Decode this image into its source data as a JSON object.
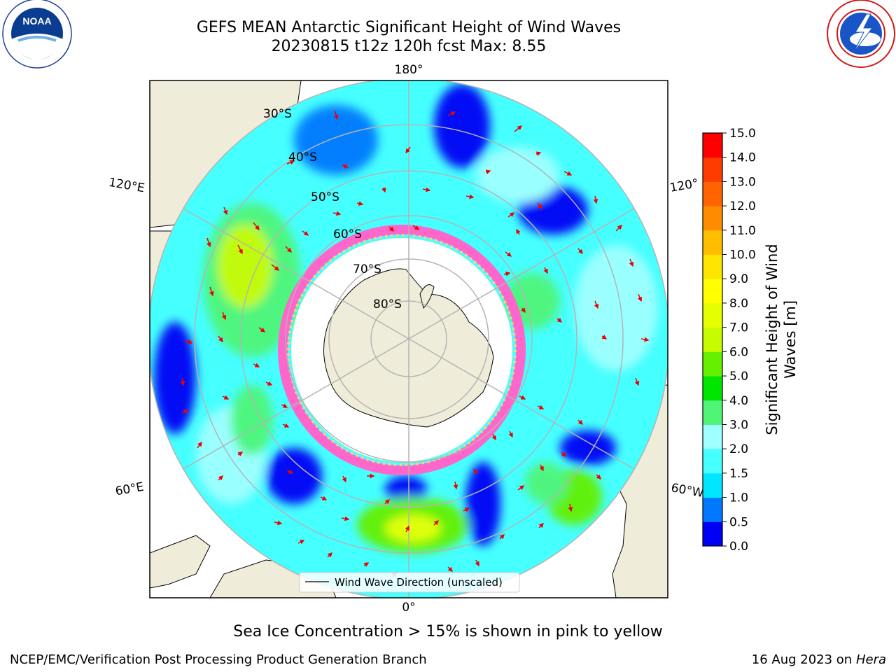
{
  "title": {
    "line1": "GEFS MEAN Antarctic Significant Height of Wind Waves",
    "line2": "20230815 t12z 120h fcst   Max: 8.55"
  },
  "logos": {
    "left": {
      "name": "noaa-logo",
      "text": "NOAA",
      "ring_text": "NATIONAL OCEANIC AND ATMOSPHERIC ADMINISTRATION · U.S. DEPARTMENT OF COMMERCE"
    },
    "right": {
      "name": "nws-logo",
      "ring_text": "NATIONAL WEATHER SERVICE"
    }
  },
  "map": {
    "projection": "south-polar-stereographic",
    "longitude_labels": {
      "top": "180°",
      "bottom": "0°",
      "left_upper": "120°E",
      "left_lower": "60°E",
      "right_upper": "120°",
      "right_lower": "60°W"
    },
    "latitude_labels": [
      "30°S",
      "40°S",
      "50°S",
      "60°S",
      "70°S",
      "80°S"
    ],
    "legend_label": "Wind Wave Direction (unscaled)",
    "colors": {
      "land": "#efedda",
      "ice_shelf": "#ffffff",
      "grid": "#b4b4b4",
      "arrow": "#ee0000",
      "sea_ice": [
        "#ff66cc",
        "#ffa0d0",
        "#ffd27a"
      ]
    }
  },
  "colorbar": {
    "label_line1": "Significant Height of Wind",
    "label_line2": "Waves [m]",
    "ticks": [
      "0.0",
      "0.5",
      "1.0",
      "1.5",
      "2.0",
      "3.0",
      "4.0",
      "5.0",
      "6.0",
      "7.0",
      "8.0",
      "9.0",
      "10.0",
      "11.0",
      "12.0",
      "13.0",
      "14.0",
      "15.0"
    ],
    "colors": [
      "#0000f5",
      "#0078ff",
      "#00e6ff",
      "#46ffff",
      "#a0ffff",
      "#50f578",
      "#00e600",
      "#64f000",
      "#c8fa00",
      "#e6ff00",
      "#ffff00",
      "#ffe600",
      "#ffbe00",
      "#ff8c00",
      "#ff6400",
      "#ff3c00",
      "#ff0000"
    ]
  },
  "footer": {
    "note": "Sea Ice Concentration > 15% is shown in pink to yellow",
    "left": "NCEP/EMC/Verification Post Processing Product Generation Branch",
    "right_date": "16 Aug 2023 on",
    "right_host": "Hera"
  }
}
